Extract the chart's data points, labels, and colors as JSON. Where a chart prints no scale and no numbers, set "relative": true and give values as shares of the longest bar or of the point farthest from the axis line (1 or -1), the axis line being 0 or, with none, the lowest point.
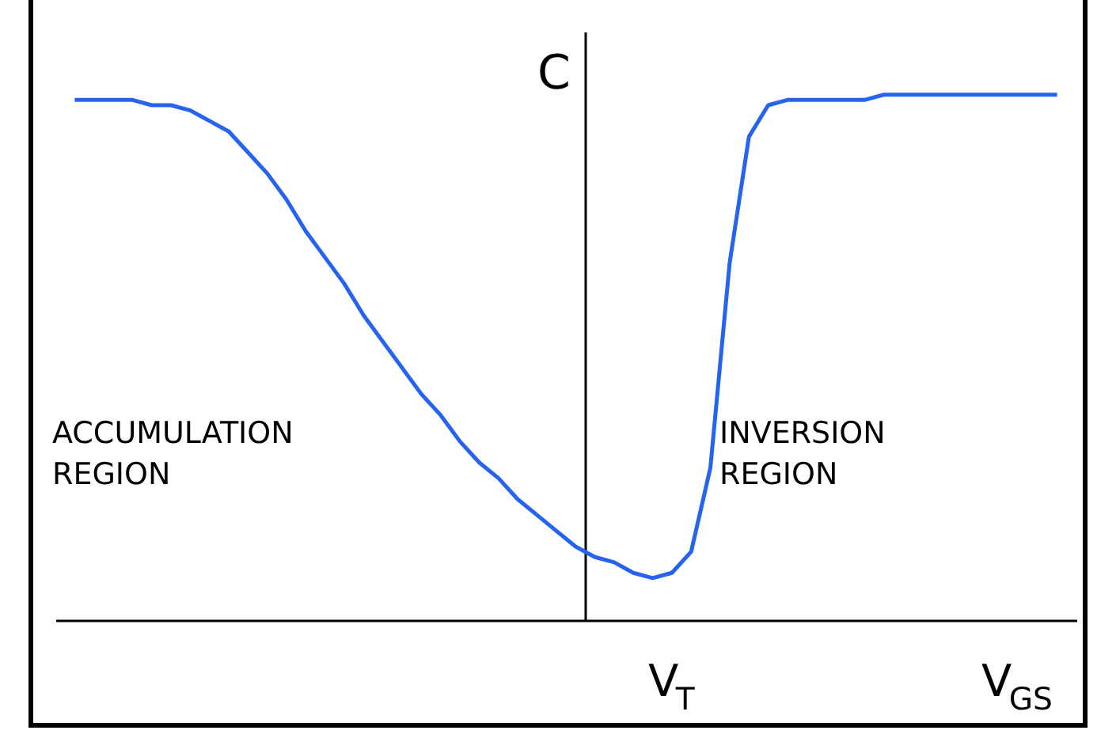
{
  "chart_data": {
    "type": "line",
    "relative": true,
    "xlabel": "V$_{GS}$",
    "ylabel": "C",
    "annotations": [
      "ACCUMULATION REGION",
      "INVERSION REGION",
      "V$_{T}$"
    ],
    "categories": [
      null,
      null,
      null,
      null,
      null,
      null,
      null,
      null,
      null,
      null,
      null,
      null,
      null,
      null,
      null,
      null,
      null,
      null,
      null,
      null,
      null,
      null,
      null,
      null,
      null,
      null,
      null,
      null,
      null,
      null,
      null,
      null,
      null,
      null,
      null,
      null,
      null,
      null,
      null,
      null,
      null,
      null,
      null,
      null,
      null,
      null,
      null,
      null,
      null,
      null,
      null,
      null
    ],
    "series": [
      {
        "color": "#2563f0",
        "values": [
          0.99,
          0.99,
          0.99,
          0.99,
          0.98,
          0.98,
          0.97,
          0.95,
          0.93,
          0.89,
          0.85,
          0.8,
          0.74,
          0.69,
          0.64,
          0.58,
          0.53,
          0.48,
          0.43,
          0.39,
          0.34,
          0.3,
          0.27,
          0.23,
          0.2,
          0.17,
          0.14,
          0.12,
          0.11,
          0.09,
          0.08,
          0.09,
          0.13,
          0.29,
          0.68,
          0.92,
          0.98,
          0.99,
          0.99,
          0.99,
          0.99,
          0.99,
          1,
          1,
          1,
          1,
          1,
          1,
          1,
          1,
          1,
          1
        ]
      }
    ],
    "grid": false,
    "marker": "none",
    "line_style": "solid"
  }
}
